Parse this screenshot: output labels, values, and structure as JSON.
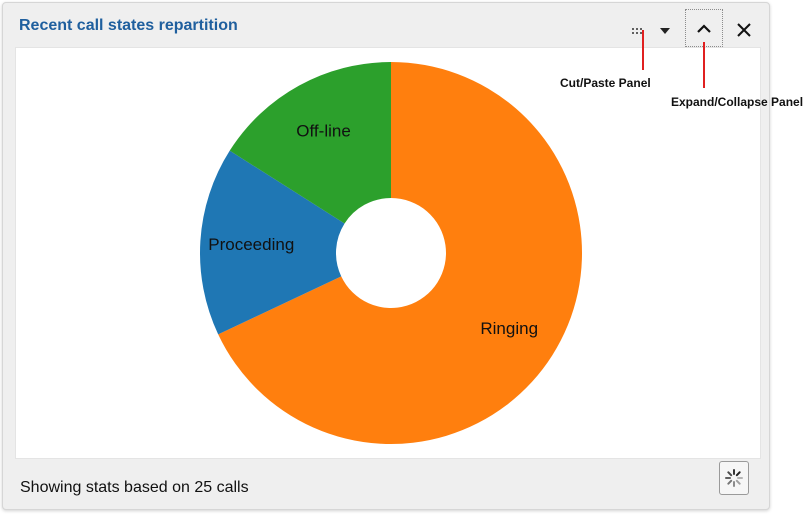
{
  "panel": {
    "title": "Recent call states repartition",
    "footer_text": "Showing stats based on 25 calls"
  },
  "controls": {
    "drag_icon": "drag-dots-icon",
    "menu_icon": "caret-down-icon",
    "collapse_icon": "chevron-up-icon",
    "close_icon": "close-icon",
    "refresh_icon": "spinner-icon"
  },
  "annotations": {
    "cut_paste": "Cut/Paste Panel",
    "expand_collapse": "Expand/Collapse Panel",
    "color": "#e02020"
  },
  "chart_data": {
    "type": "pie",
    "style": "donut",
    "slices": [
      {
        "label": "Ringing",
        "value": 17,
        "color": "#ff7f0e"
      },
      {
        "label": "Proceeding",
        "value": 4,
        "color": "#1f77b4"
      },
      {
        "label": "Off-line",
        "value": 4,
        "color": "#2ca02c"
      }
    ],
    "total": 25
  }
}
